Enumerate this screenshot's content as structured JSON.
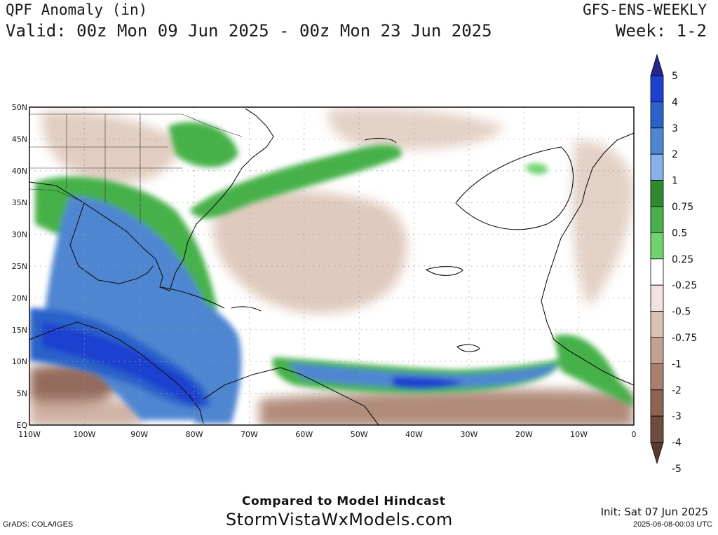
{
  "header": {
    "title": "QPF Anomaly (in)",
    "product": "GFS-ENS-WEEKLY",
    "valid": "Valid: 00z Mon 09 Jun 2025 - 00z Mon 23 Jun 2025",
    "week": "Week: 1-2"
  },
  "map": {
    "lon_labels": [
      "110W",
      "100W",
      "90W",
      "80W",
      "70W",
      "60W",
      "50W",
      "40W",
      "30W",
      "20W",
      "10W",
      "0"
    ],
    "lat_labels": [
      "EQ",
      "5N",
      "10N",
      "15N",
      "20N",
      "25N",
      "30N",
      "35N",
      "40N",
      "45N",
      "50N"
    ],
    "lon_range": [
      -110,
      0
    ],
    "lat_range": [
      0,
      50
    ],
    "grid": "dotted"
  },
  "colorbar": {
    "labels": [
      "5",
      "4",
      "3",
      "2",
      "1",
      "0.75",
      "0.5",
      "0.25",
      "-0.25",
      "-0.5",
      "-0.75",
      "-1",
      "-2",
      "-3",
      "-4",
      "-5"
    ],
    "colors": [
      "#26268f",
      "#1f3fd0",
      "#2b62c9",
      "#4f86d2",
      "#86b2ea",
      "#2f8a2f",
      "#46b14a",
      "#71d36f",
      "#ffffff",
      "#f1e4dc",
      "#dbc1b2",
      "#c4a08f",
      "#a87f6d",
      "#8d6352",
      "#704c40",
      "#5a3a30"
    ]
  },
  "footer": {
    "compared": "Compared to Model Hindcast",
    "site": "StormVistaWxModels.com",
    "grads": "GrADS: COLA/IGES",
    "init": "Init: Sat 07 Jun 2025",
    "stamp": "2025-06-08-00:03 UTC"
  }
}
